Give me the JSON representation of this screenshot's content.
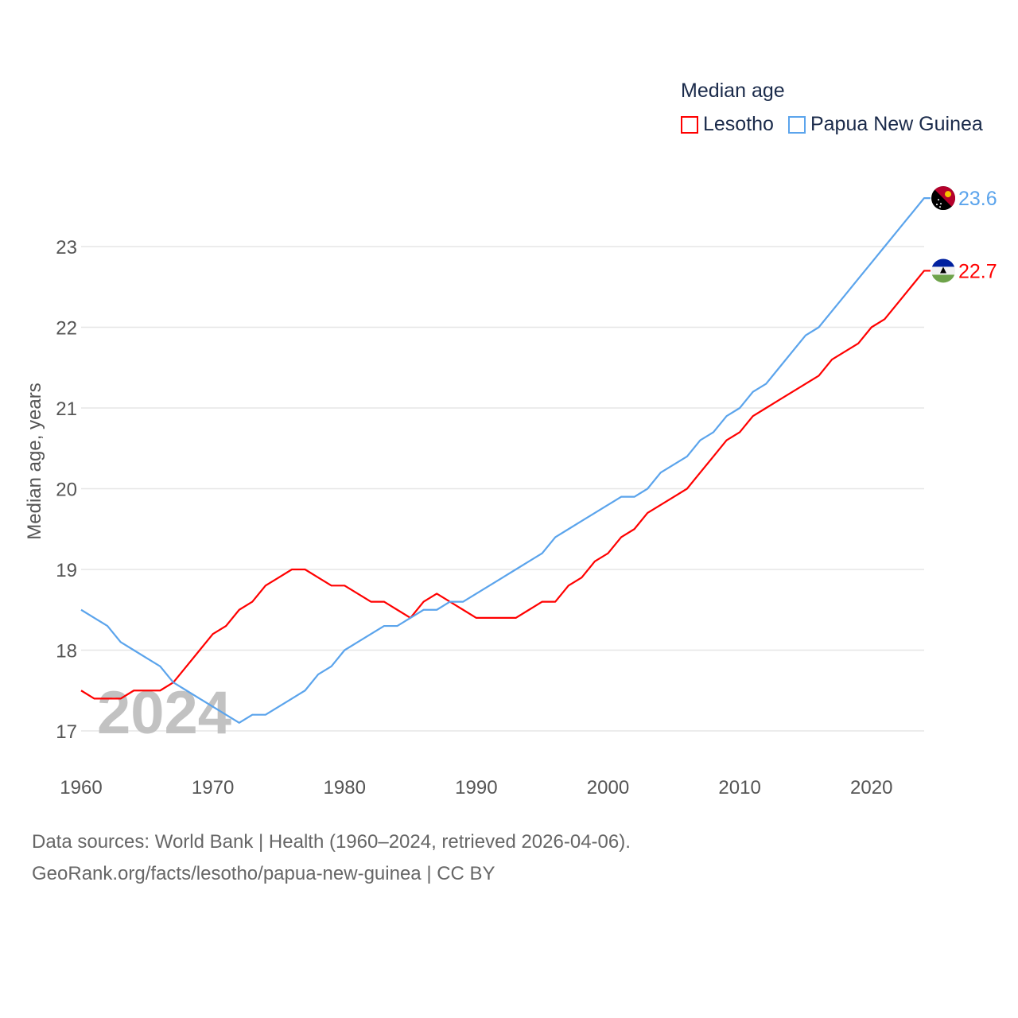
{
  "chart_data": {
    "type": "line",
    "title": "Median age",
    "xlabel": "",
    "ylabel": "Median age, years",
    "xlim": [
      1960,
      2024
    ],
    "ylim": [
      16.5,
      23.9
    ],
    "x_ticks": [
      1960,
      1970,
      1980,
      1990,
      2000,
      2010,
      2020
    ],
    "y_ticks": [
      17,
      18,
      19,
      20,
      21,
      22,
      23
    ],
    "grid": true,
    "legend_position": "top-right",
    "watermark_year": "2024",
    "x": [
      1960,
      1961,
      1962,
      1963,
      1964,
      1965,
      1966,
      1967,
      1968,
      1969,
      1970,
      1971,
      1972,
      1973,
      1974,
      1975,
      1976,
      1977,
      1978,
      1979,
      1980,
      1981,
      1982,
      1983,
      1984,
      1985,
      1986,
      1987,
      1988,
      1989,
      1990,
      1991,
      1992,
      1993,
      1994,
      1995,
      1996,
      1997,
      1998,
      1999,
      2000,
      2001,
      2002,
      2003,
      2004,
      2005,
      2006,
      2007,
      2008,
      2009,
      2010,
      2011,
      2012,
      2013,
      2014,
      2015,
      2016,
      2017,
      2018,
      2019,
      2020,
      2021,
      2022,
      2023,
      2024
    ],
    "series": [
      {
        "name": "Lesotho",
        "color": "#ff0000",
        "end_label": "22.7",
        "flag": "lesotho-flag",
        "values": [
          17.5,
          17.4,
          17.4,
          17.4,
          17.5,
          17.5,
          17.5,
          17.6,
          17.8,
          18.0,
          18.2,
          18.3,
          18.5,
          18.6,
          18.8,
          18.9,
          19.0,
          19.0,
          18.9,
          18.8,
          18.8,
          18.7,
          18.6,
          18.6,
          18.5,
          18.4,
          18.6,
          18.7,
          18.6,
          18.5,
          18.4,
          18.4,
          18.4,
          18.4,
          18.5,
          18.6,
          18.6,
          18.8,
          18.9,
          19.1,
          19.2,
          19.4,
          19.5,
          19.7,
          19.8,
          19.9,
          20.0,
          20.2,
          20.4,
          20.6,
          20.7,
          20.9,
          21.0,
          21.1,
          21.2,
          21.3,
          21.4,
          21.6,
          21.7,
          21.8,
          22.0,
          22.1,
          22.3,
          22.5,
          22.7
        ]
      },
      {
        "name": "Papua New Guinea",
        "color": "#5ba4ec",
        "end_label": "23.6",
        "flag": "papua-new-guinea-flag",
        "values": [
          18.5,
          18.4,
          18.3,
          18.1,
          18.0,
          17.9,
          17.8,
          17.6,
          17.5,
          17.4,
          17.3,
          17.2,
          17.1,
          17.2,
          17.2,
          17.3,
          17.4,
          17.5,
          17.7,
          17.8,
          18.0,
          18.1,
          18.2,
          18.3,
          18.3,
          18.4,
          18.5,
          18.5,
          18.6,
          18.6,
          18.7,
          18.8,
          18.9,
          19.0,
          19.1,
          19.2,
          19.4,
          19.5,
          19.6,
          19.7,
          19.8,
          19.9,
          19.9,
          20.0,
          20.2,
          20.3,
          20.4,
          20.6,
          20.7,
          20.9,
          21.0,
          21.2,
          21.3,
          21.5,
          21.7,
          21.9,
          22.0,
          22.2,
          22.4,
          22.6,
          22.8,
          23.0,
          23.2,
          23.4,
          23.6
        ]
      }
    ]
  },
  "footer": {
    "line1": "Data sources: World Bank | Health (1960–2024, retrieved 2026-04-06).",
    "line2": "GeoRank.org/facts/lesotho/papua-new-guinea | CC BY"
  }
}
